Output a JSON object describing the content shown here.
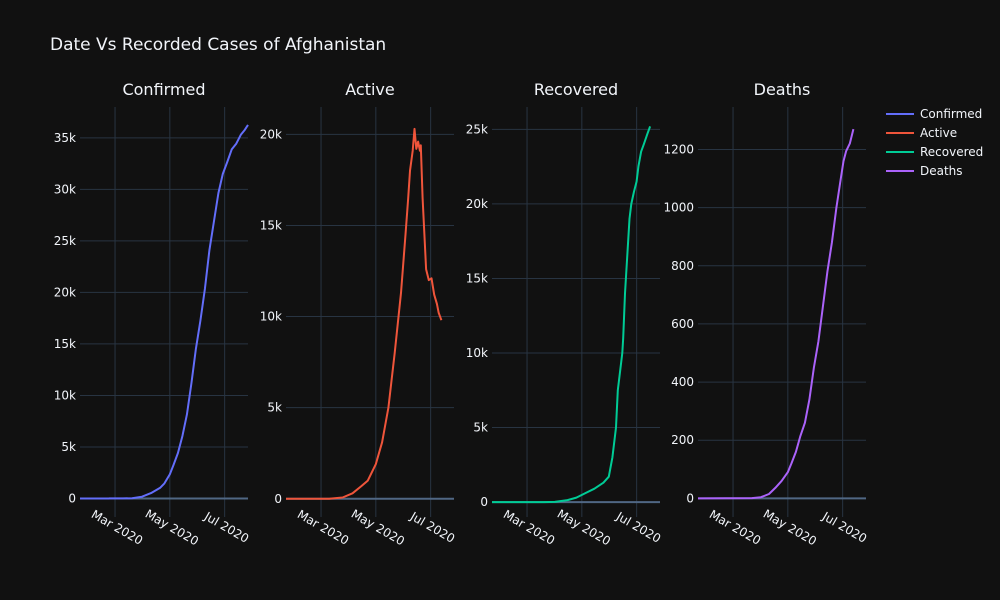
{
  "title": "Date Vs Recorded Cases of Afghanistan",
  "chart_data": [
    {
      "type": "line",
      "title": "Confirmed",
      "color": "#636efa",
      "xlabel": "",
      "ylabel": "",
      "xlim": [
        "2020-01-22",
        "2020-07-27"
      ],
      "xticks": [
        "2020-03-01",
        "2020-05-01",
        "2020-07-01"
      ],
      "xtick_labels": [
        "Mar 2020",
        "May 2020",
        "Jul 2020"
      ],
      "ylim": [
        -1800,
        38000
      ],
      "yticks": [
        0,
        5000,
        10000,
        15000,
        20000,
        25000,
        30000,
        35000
      ],
      "ytick_labels": [
        "0",
        "5k",
        "10k",
        "15k",
        "20k",
        "25k",
        "30k",
        "35k"
      ],
      "grid": true,
      "points": [
        [
          "2020-01-22",
          0
        ],
        [
          "2020-02-23",
          0
        ],
        [
          "2020-02-24",
          1
        ],
        [
          "2020-03-10",
          5
        ],
        [
          "2020-03-20",
          24
        ],
        [
          "2020-03-31",
          174
        ],
        [
          "2020-04-10",
          521
        ],
        [
          "2020-04-20",
          1026
        ],
        [
          "2020-04-25",
          1463
        ],
        [
          "2020-05-01",
          2335
        ],
        [
          "2020-05-05",
          3224
        ],
        [
          "2020-05-10",
          4402
        ],
        [
          "2020-05-15",
          6053
        ],
        [
          "2020-05-20",
          8145
        ],
        [
          "2020-05-25",
          11173
        ],
        [
          "2020-05-30",
          14525
        ],
        [
          "2020-06-04",
          17267
        ],
        [
          "2020-06-09",
          20342
        ],
        [
          "2020-06-14",
          24102
        ],
        [
          "2020-06-19",
          26874
        ],
        [
          "2020-06-24",
          29640
        ],
        [
          "2020-06-29",
          31507
        ],
        [
          "2020-07-04",
          32672
        ],
        [
          "2020-07-09",
          33908
        ],
        [
          "2020-07-14",
          34451
        ],
        [
          "2020-07-19",
          35300
        ],
        [
          "2020-07-23",
          35727
        ],
        [
          "2020-07-27",
          36263
        ]
      ]
    },
    {
      "type": "line",
      "title": "Active",
      "color": "#ef553b",
      "xlabel": "",
      "ylabel": "",
      "xlim": [
        "2020-01-22",
        "2020-07-27"
      ],
      "xticks": [
        "2020-03-01",
        "2020-05-01",
        "2020-07-01"
      ],
      "xtick_labels": [
        "Mar 2020",
        "May 2020",
        "Jul 2020"
      ],
      "ylim": [
        -1000,
        21500
      ],
      "yticks": [
        0,
        5000,
        10000,
        15000,
        20000
      ],
      "ytick_labels": [
        "0",
        "5k",
        "10k",
        "15k",
        "20k"
      ],
      "grid": true,
      "points": [
        [
          "2020-01-22",
          0
        ],
        [
          "2020-03-10",
          5
        ],
        [
          "2020-03-25",
          70
        ],
        [
          "2020-04-05",
          300
        ],
        [
          "2020-04-15",
          700
        ],
        [
          "2020-04-22",
          1000
        ],
        [
          "2020-05-01",
          1900
        ],
        [
          "2020-05-08",
          3100
        ],
        [
          "2020-05-15",
          5000
        ],
        [
          "2020-05-22",
          8000
        ],
        [
          "2020-05-29",
          11300
        ],
        [
          "2020-06-03",
          14500
        ],
        [
          "2020-06-06",
          16500
        ],
        [
          "2020-06-08",
          18000
        ],
        [
          "2020-06-11",
          19100
        ],
        [
          "2020-06-13",
          20300
        ],
        [
          "2020-06-15",
          19200
        ],
        [
          "2020-06-17",
          19600
        ],
        [
          "2020-06-19",
          19100
        ],
        [
          "2020-06-20",
          19400
        ],
        [
          "2020-06-22",
          16500
        ],
        [
          "2020-06-24",
          14500
        ],
        [
          "2020-06-26",
          12600
        ],
        [
          "2020-06-29",
          12000
        ],
        [
          "2020-07-02",
          12100
        ],
        [
          "2020-07-05",
          11200
        ],
        [
          "2020-07-08",
          10700
        ],
        [
          "2020-07-10",
          10200
        ],
        [
          "2020-07-13",
          9800
        ]
      ]
    },
    {
      "type": "line",
      "title": "Recovered",
      "color": "#00cc96",
      "xlabel": "",
      "ylabel": "",
      "xlim": [
        "2020-01-22",
        "2020-07-27"
      ],
      "xticks": [
        "2020-03-01",
        "2020-05-01",
        "2020-07-01"
      ],
      "xtick_labels": [
        "Mar 2020",
        "May 2020",
        "Jul 2020"
      ],
      "ylim": [
        -1000,
        26500
      ],
      "yticks": [
        0,
        5000,
        10000,
        15000,
        20000,
        25000
      ],
      "ytick_labels": [
        "0",
        "5k",
        "10k",
        "15k",
        "20k",
        "25k"
      ],
      "grid": true,
      "points": [
        [
          "2020-01-22",
          0
        ],
        [
          "2020-03-20",
          2
        ],
        [
          "2020-04-01",
          10
        ],
        [
          "2020-04-15",
          131
        ],
        [
          "2020-04-25",
          300
        ],
        [
          "2020-05-05",
          600
        ],
        [
          "2020-05-15",
          900
        ],
        [
          "2020-05-25",
          1300
        ],
        [
          "2020-05-31",
          1700
        ],
        [
          "2020-06-04",
          3000
        ],
        [
          "2020-06-08",
          5000
        ],
        [
          "2020-06-10",
          7500
        ],
        [
          "2020-06-15",
          10000
        ],
        [
          "2020-06-16",
          11000
        ],
        [
          "2020-06-18",
          14000
        ],
        [
          "2020-06-20",
          16000
        ],
        [
          "2020-06-23",
          19000
        ],
        [
          "2020-06-25",
          20000
        ],
        [
          "2020-06-28",
          20800
        ],
        [
          "2020-07-01",
          21500
        ],
        [
          "2020-07-03",
          22500
        ],
        [
          "2020-07-06",
          23500
        ],
        [
          "2020-07-09",
          24000
        ],
        [
          "2020-07-13",
          24700
        ],
        [
          "2020-07-16",
          25200
        ]
      ]
    },
    {
      "type": "line",
      "title": "Deaths",
      "color": "#ab63fa",
      "xlabel": "",
      "ylabel": "",
      "xlim": [
        "2020-01-22",
        "2020-07-27"
      ],
      "xticks": [
        "2020-03-01",
        "2020-05-01",
        "2020-07-01"
      ],
      "xtick_labels": [
        "Mar 2020",
        "May 2020",
        "Jul 2020"
      ],
      "ylim": [
        -64,
        1346
      ],
      "yticks": [
        0,
        200,
        400,
        600,
        800,
        1000,
        1200
      ],
      "ytick_labels": [
        "0",
        "200",
        "400",
        "600",
        "800",
        "1000",
        "1200"
      ],
      "grid": true,
      "points": [
        [
          "2020-01-22",
          0
        ],
        [
          "2020-03-22",
          1
        ],
        [
          "2020-04-01",
          4
        ],
        [
          "2020-04-10",
          15
        ],
        [
          "2020-04-17",
          36
        ],
        [
          "2020-04-24",
          60
        ],
        [
          "2020-05-01",
          90
        ],
        [
          "2020-05-05",
          120
        ],
        [
          "2020-05-10",
          160
        ],
        [
          "2020-05-15",
          215
        ],
        [
          "2020-05-20",
          260
        ],
        [
          "2020-05-25",
          340
        ],
        [
          "2020-05-30",
          450
        ],
        [
          "2020-06-04",
          540
        ],
        [
          "2020-06-09",
          660
        ],
        [
          "2020-06-14",
          780
        ],
        [
          "2020-06-19",
          880
        ],
        [
          "2020-06-24",
          1000
        ],
        [
          "2020-06-29",
          1100
        ],
        [
          "2020-07-02",
          1160
        ],
        [
          "2020-07-05",
          1195
        ],
        [
          "2020-07-09",
          1220
        ],
        [
          "2020-07-13",
          1270
        ]
      ]
    }
  ],
  "legend": {
    "position": "top-right",
    "items": [
      {
        "label": "Confirmed",
        "color": "#636efa"
      },
      {
        "label": "Active",
        "color": "#ef553b"
      },
      {
        "label": "Recovered",
        "color": "#00cc96"
      },
      {
        "label": "Deaths",
        "color": "#ab63fa"
      }
    ]
  }
}
